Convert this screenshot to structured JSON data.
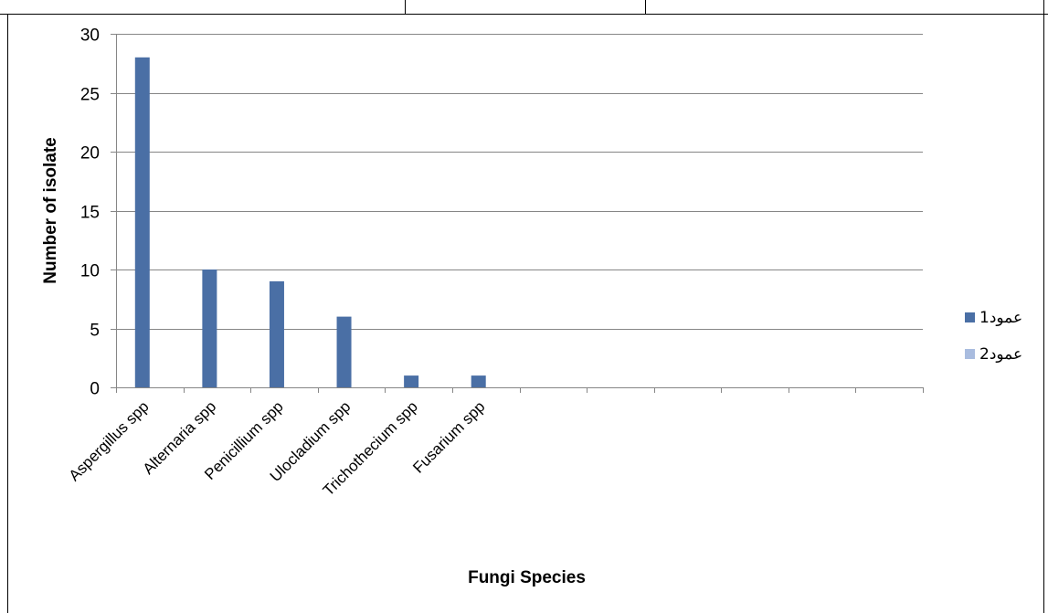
{
  "colors": {
    "series1": "#4a6fa5",
    "series2": "#a9bcdf",
    "gridline": "#868686",
    "border": "#000000"
  },
  "chart_data": {
    "type": "bar",
    "categories": [
      "Aspergillus spp",
      "Alternaria spp",
      "Penicillium spp",
      "Ulocladium spp",
      "Trichothecium spp",
      "Fusarium spp",
      "",
      "",
      "",
      "",
      "",
      ""
    ],
    "series": [
      {
        "name": "عمود1",
        "values": [
          28,
          10,
          9,
          6,
          1,
          1,
          null,
          null,
          null,
          null,
          null,
          null
        ]
      },
      {
        "name": "عمود2",
        "values": [
          null,
          null,
          null,
          null,
          null,
          null,
          null,
          null,
          null,
          null,
          null,
          null
        ]
      }
    ],
    "title": "",
    "xlabel": "Fungi Species",
    "ylabel": "Number of isolate",
    "ylim": [
      0,
      30
    ],
    "yticks": [
      0,
      5,
      10,
      15,
      20,
      25,
      30
    ],
    "grid": true,
    "legend": "right"
  }
}
